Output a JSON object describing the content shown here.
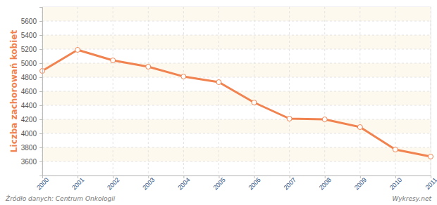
{
  "chart_data": {
    "type": "line",
    "y_label": "Liczba zachorowań kobiet",
    "source": "Źródło danych: Centrum Onkologii",
    "credit": "Wykresy.net",
    "x": [
      2000,
      2001,
      2002,
      2003,
      2004,
      2005,
      2006,
      2007,
      2008,
      2009,
      2010,
      2011
    ],
    "values": [
      4890,
      5190,
      5040,
      4950,
      4810,
      4730,
      4440,
      4210,
      4200,
      4090,
      3770,
      3670
    ],
    "color": "#f0834f",
    "marker": "circle",
    "xlim": [
      2000,
      2011
    ],
    "xticks": [
      2000,
      2001,
      2002,
      2003,
      2004,
      2005,
      2006,
      2007,
      2008,
      2009,
      2010,
      2011
    ],
    "ylim": [
      3400,
      5800
    ],
    "yticks": [
      3600,
      3800,
      4000,
      4200,
      4400,
      4600,
      4800,
      5000,
      5200,
      5400,
      5600
    ],
    "grid": true
  }
}
